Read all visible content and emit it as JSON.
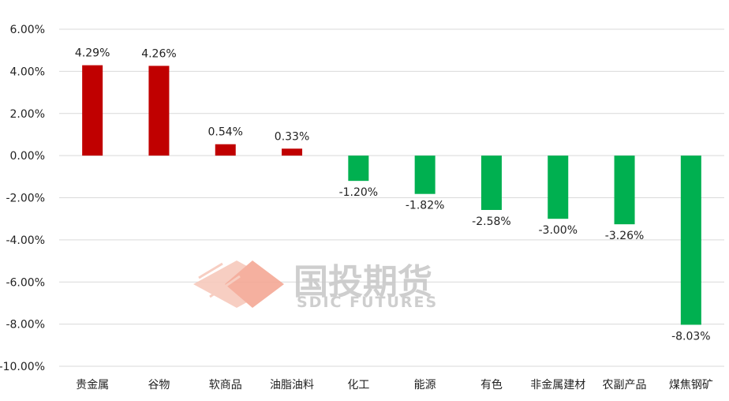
{
  "chart_data": {
    "type": "bar",
    "categories": [
      "贵金属",
      "谷物",
      "软商品",
      "油脂油料",
      "化工",
      "能源",
      "有色",
      "非金属建材",
      "农副产品",
      "煤焦钢矿"
    ],
    "values": [
      4.29,
      4.26,
      0.54,
      0.33,
      -1.2,
      -1.82,
      -2.58,
      -3.0,
      -3.26,
      -8.03
    ],
    "data_labels": [
      "4.29%",
      "4.26%",
      "0.54%",
      "0.33%",
      "-1.20%",
      "-1.82%",
      "-2.58%",
      "-3.00%",
      "-3.26%",
      "-8.03%"
    ],
    "yticks": [
      6,
      4,
      2,
      0,
      -2,
      -4,
      -6,
      -8,
      -10
    ],
    "ytick_labels": [
      "6.00%",
      "4.00%",
      "2.00%",
      "0.00%",
      "-2.00%",
      "-4.00%",
      "-6.00%",
      "-8.00%",
      "-10.00%"
    ],
    "ylim": [
      -10,
      6
    ],
    "grid": true,
    "title": "",
    "xlabel": "",
    "ylabel": "",
    "colors": {
      "positive": "#c00000",
      "negative": "#00b050",
      "grid": "#d9d9d9"
    }
  },
  "watermark": {
    "text": "国投期货",
    "subtext": "SDIC FUTURES",
    "color": "#f4b8a8"
  }
}
